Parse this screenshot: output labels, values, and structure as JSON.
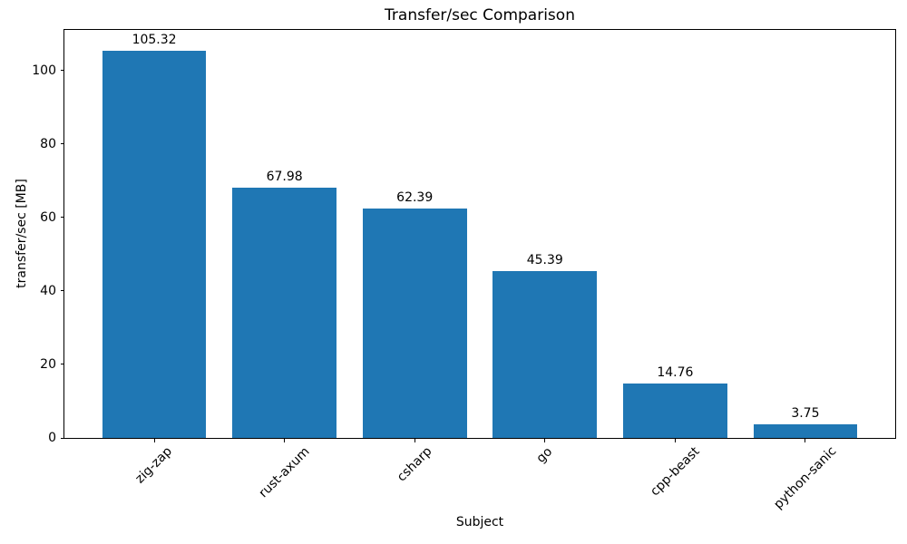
{
  "chart_data": {
    "type": "bar",
    "title": "Transfer/sec Comparison",
    "xlabel": "Subject",
    "ylabel": "transfer/sec [MB]",
    "categories": [
      "zig-zap",
      "rust-axum",
      "csharp",
      "go",
      "cpp-beast",
      "python-sanic"
    ],
    "values": [
      105.32,
      67.98,
      62.39,
      45.39,
      14.76,
      3.75
    ],
    "value_labels": [
      "105.32",
      "67.98",
      "62.39",
      "45.39",
      "14.76",
      "3.75"
    ],
    "yticks": [
      0,
      20,
      40,
      60,
      80,
      100
    ],
    "ylim": [
      0,
      111
    ],
    "bar_color": "#1f77b4",
    "axis_color": "#000000",
    "grid": false,
    "legend": "none"
  }
}
